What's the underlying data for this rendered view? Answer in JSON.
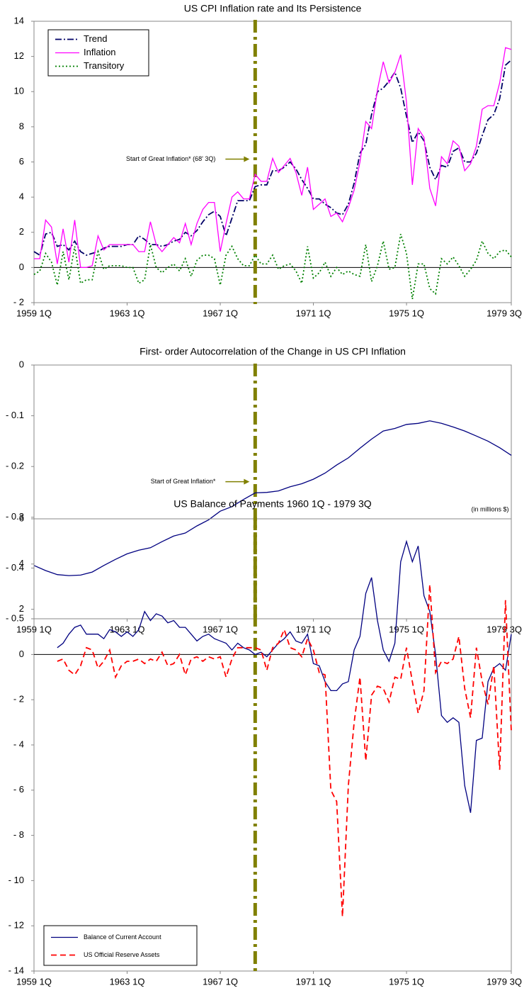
{
  "chart_data": [
    {
      "type": "line",
      "title": "US CPI Inflation rate and Its Persistence",
      "xlim": [
        0,
        82
      ],
      "ylim": [
        -2,
        14
      ],
      "xticks": [
        {
          "value": 0,
          "label": "1959 1Q"
        },
        {
          "value": 16,
          "label": "1963 1Q"
        },
        {
          "value": 32,
          "label": "1967 1Q"
        },
        {
          "value": 48,
          "label": "1971 1Q"
        },
        {
          "value": 64,
          "label": "1975 1Q"
        },
        {
          "value": 82,
          "label": "1979 3Q"
        }
      ],
      "yticks": [
        {
          "value": -2,
          "label": "- 2"
        },
        0,
        2,
        4,
        6,
        8,
        10,
        12,
        14
      ],
      "vline": 38,
      "annotation": "Start of Great Inflation* (68' 3Q)",
      "legend": "upper left",
      "grid": false,
      "x": [
        0,
        1,
        2,
        3,
        4,
        5,
        6,
        7,
        8,
        9,
        10,
        11,
        12,
        13,
        14,
        15,
        16,
        17,
        18,
        19,
        20,
        21,
        22,
        23,
        24,
        25,
        26,
        27,
        28,
        29,
        30,
        31,
        32,
        33,
        34,
        35,
        36,
        37,
        38,
        39,
        40,
        41,
        42,
        43,
        44,
        45,
        46,
        47,
        48,
        49,
        50,
        51,
        52,
        53,
        54,
        55,
        56,
        57,
        58,
        59,
        60,
        61,
        62,
        63,
        64,
        65,
        66,
        67,
        68,
        69,
        70,
        71,
        72,
        73,
        74,
        75,
        76,
        77,
        78,
        79,
        80,
        81,
        82
      ],
      "series": [
        {
          "name": "Trend",
          "color": "#000066",
          "style": "dashdot",
          "values": [
            0.9,
            0.7,
            1.9,
            2.0,
            1.2,
            1.3,
            1.0,
            1.5,
            0.9,
            0.7,
            0.8,
            0.9,
            1.1,
            1.2,
            1.2,
            1.2,
            1.3,
            1.3,
            1.8,
            1.6,
            1.3,
            1.3,
            1.2,
            1.3,
            1.5,
            1.6,
            2.0,
            1.8,
            2.1,
            2.6,
            3.0,
            3.2,
            2.9,
            1.8,
            2.8,
            3.8,
            3.8,
            3.8,
            4.6,
            4.7,
            4.7,
            5.5,
            5.5,
            5.7,
            6.0,
            5.6,
            5.0,
            4.5,
            3.9,
            3.9,
            3.6,
            3.4,
            3.1,
            3.0,
            3.6,
            4.8,
            6.5,
            7.0,
            8.7,
            10.0,
            10.2,
            10.6,
            11.1,
            10.2,
            8.6,
            7.1,
            7.7,
            7.2,
            5.7,
            5.0,
            5.8,
            5.7,
            6.6,
            6.8,
            6.0,
            6.0,
            6.5,
            7.5,
            8.4,
            8.7,
            9.6,
            11.5,
            11.8
          ]
        },
        {
          "name": "Inflation",
          "color": "#ff00ff",
          "style": "solid",
          "values": [
            0.5,
            0.5,
            2.7,
            2.3,
            0.2,
            2.2,
            0.3,
            2.7,
            0,
            0,
            0.1,
            1.8,
            1.0,
            1.3,
            1.3,
            1.3,
            1.3,
            1.3,
            0.9,
            0.9,
            2.6,
            1.3,
            0.9,
            1.3,
            1.7,
            1.4,
            2.5,
            1.3,
            2.5,
            3.3,
            3.7,
            3.7,
            0.9,
            2.5,
            4.0,
            4.3,
            3.9,
            3.9,
            5.3,
            4.9,
            4.9,
            6.2,
            5.4,
            5.8,
            6.2,
            5.4,
            4.1,
            5.7,
            3.3,
            3.6,
            3.9,
            2.9,
            3.1,
            2.6,
            3.4,
            4.4,
            6.0,
            8.3,
            7.9,
            10.1,
            11.7,
            10.5,
            11.1,
            12.1,
            9.4,
            4.7,
            7.9,
            7.4,
            4.5,
            3.5,
            6.3,
            5.9,
            7.2,
            6.9,
            5.5,
            5.9,
            6.9,
            9.0,
            9.2,
            9.2,
            10.5,
            12.5,
            12.4
          ]
        },
        {
          "name": "Transitory",
          "color": "#008000",
          "style": "dotted",
          "values": [
            -0.4,
            -0.2,
            0.8,
            0.3,
            -1.0,
            0.9,
            -0.7,
            1.2,
            -0.9,
            -0.7,
            -0.7,
            0.9,
            -0.1,
            0.1,
            0.1,
            0.1,
            0,
            0,
            -0.9,
            -0.7,
            1.3,
            0,
            -0.3,
            0,
            0.2,
            -0.2,
            0.5,
            -0.5,
            0.4,
            0.7,
            0.7,
            0.5,
            -1.0,
            0.7,
            1.2,
            0.5,
            0.1,
            0.1,
            0.7,
            0.2,
            0.2,
            0.7,
            -0.1,
            0.1,
            0.2,
            -0.2,
            -0.9,
            1.2,
            -0.6,
            -0.3,
            0.3,
            -0.5,
            0,
            -0.4,
            -0.2,
            -0.4,
            -0.5,
            1.3,
            -0.8,
            0.1,
            1.5,
            -0.1,
            0,
            1.9,
            0.8,
            -1.8,
            0.2,
            0.2,
            -1.2,
            -1.5,
            0.5,
            0.2,
            0.6,
            0.1,
            -0.5,
            -0.1,
            0.4,
            1.5,
            0.8,
            0.5,
            0.9,
            1.0,
            0.6
          ]
        }
      ]
    },
    {
      "type": "line",
      "title": "First- order Autocorrelation of the Change in US CPI Inflation",
      "xlim": [
        0,
        82
      ],
      "ylim": [
        -0.5,
        0
      ],
      "xticks": [
        {
          "value": 0,
          "label": "1959 1Q"
        },
        {
          "value": 16,
          "label": "1963 1Q"
        },
        {
          "value": 32,
          "label": "1967 1Q"
        },
        {
          "value": 48,
          "label": "1971 1Q"
        },
        {
          "value": 64,
          "label": "1975 1Q"
        },
        {
          "value": 82,
          "label": "1979 3Q"
        }
      ],
      "yticks": [
        {
          "value": -0.5,
          "label": "- 0.5"
        },
        {
          "value": -0.4,
          "label": "- 0.4"
        },
        {
          "value": -0.3,
          "label": "- 0.3"
        },
        {
          "value": -0.2,
          "label": "- 0.2"
        },
        {
          "value": -0.1,
          "label": "- 0.1"
        },
        0
      ],
      "vline": 38,
      "annotation": "Start of Great Inflation*",
      "grid": false,
      "x": [
        0,
        2,
        4,
        6,
        8,
        10,
        12,
        14,
        16,
        18,
        20,
        22,
        24,
        26,
        28,
        30,
        32,
        34,
        36,
        38,
        40,
        42,
        44,
        46,
        48,
        50,
        52,
        54,
        56,
        58,
        60,
        62,
        64,
        66,
        68,
        70,
        72,
        74,
        76,
        78,
        80,
        82
      ],
      "series": [
        {
          "color": "#000080",
          "style": "solid",
          "values": [
            -0.395,
            -0.405,
            -0.413,
            -0.415,
            -0.414,
            -0.408,
            -0.395,
            -0.383,
            -0.372,
            -0.365,
            -0.36,
            -0.348,
            -0.337,
            -0.331,
            -0.317,
            -0.305,
            -0.288,
            -0.279,
            -0.265,
            -0.252,
            -0.251,
            -0.248,
            -0.24,
            -0.234,
            -0.225,
            -0.213,
            -0.197,
            -0.183,
            -0.164,
            -0.146,
            -0.13,
            -0.125,
            -0.117,
            -0.115,
            -0.11,
            -0.115,
            -0.122,
            -0.13,
            -0.14,
            -0.15,
            -0.163,
            -0.178
          ]
        }
      ]
    },
    {
      "type": "line",
      "title": "US Balance of Payments 1960 1Q -  1979 3Q",
      "note": "(in millions $)",
      "xlim": [
        0,
        82
      ],
      "ylim": [
        -14,
        6
      ],
      "xticks": [
        {
          "value": 0,
          "label": "1959 1Q"
        },
        {
          "value": 16,
          "label": "1963 1Q"
        },
        {
          "value": 32,
          "label": "1967 1Q"
        },
        {
          "value": 48,
          "label": "1971 1Q"
        },
        {
          "value": 64,
          "label": "1975 1Q"
        },
        {
          "value": 82,
          "label": "1979 3Q"
        }
      ],
      "yticks": [
        {
          "value": -14,
          "label": "- 14"
        },
        {
          "value": -12,
          "label": "- 12"
        },
        {
          "value": -10,
          "label": "- 10"
        },
        {
          "value": -8,
          "label": "- 8"
        },
        {
          "value": -6,
          "label": "- 6"
        },
        {
          "value": -4,
          "label": "- 4"
        },
        {
          "value": -2,
          "label": "- 2"
        },
        0,
        2,
        4,
        6
      ],
      "vline": 38,
      "legend": "lower left",
      "grid": false,
      "x": [
        4,
        5,
        6,
        7,
        8,
        9,
        10,
        11,
        12,
        13,
        14,
        15,
        16,
        17,
        18,
        19,
        20,
        21,
        22,
        23,
        24,
        25,
        26,
        27,
        28,
        29,
        30,
        31,
        32,
        33,
        34,
        35,
        36,
        37,
        38,
        39,
        40,
        41,
        42,
        43,
        44,
        45,
        46,
        47,
        48,
        49,
        50,
        51,
        52,
        53,
        54,
        55,
        56,
        57,
        58,
        59,
        60,
        61,
        62,
        63,
        64,
        65,
        66,
        67,
        68,
        69,
        70,
        71,
        72,
        73,
        74,
        75,
        76,
        77,
        78,
        79,
        80,
        81,
        82
      ],
      "series": [
        {
          "name": "Balance of Current Account",
          "color": "#000080",
          "style": "solid",
          "values": [
            0.3,
            0.5,
            0.9,
            1.2,
            1.3,
            0.9,
            0.9,
            0.9,
            0.7,
            1.1,
            1.0,
            0.8,
            1.0,
            0.8,
            1.1,
            1.9,
            1.5,
            1.8,
            1.7,
            1.4,
            1.5,
            1.2,
            1.2,
            0.9,
            0.6,
            0.8,
            0.9,
            0.7,
            0.6,
            0.5,
            0.2,
            0.5,
            0.3,
            0.2,
            0,
            0.1,
            -0.1,
            0.2,
            0.5,
            0.7,
            1.0,
            0.6,
            0.5,
            0.9,
            -0.4,
            -0.5,
            -1.2,
            -1.6,
            -1.6,
            -1.3,
            -1.2,
            0.2,
            0.8,
            2.7,
            3.4,
            1.5,
            0.2,
            -0.3,
            0.5,
            4.1,
            5.0,
            4.1,
            4.8,
            2.6,
            1.9,
            0,
            -2.7,
            -3.0,
            -2.8,
            -3.0,
            -5.8,
            -7.0,
            -3.8,
            -3.7,
            -1.2,
            -0.6,
            -0.4,
            -0.7,
            0.9
          ]
        },
        {
          "name": "US Official Reserve Assets",
          "color": "#ff0000",
          "style": "dashed",
          "values": [
            -0.3,
            -0.2,
            -0.7,
            -0.9,
            -0.5,
            0.3,
            0.2,
            -0.6,
            -0.3,
            0.2,
            -1.0,
            -0.5,
            -0.3,
            -0.3,
            -0.2,
            -0.4,
            -0.2,
            -0.3,
            0.1,
            -0.5,
            -0.4,
            0,
            -0.9,
            -0.2,
            -0.1,
            -0.3,
            -0.1,
            -0.2,
            -0.1,
            -1.0,
            -0.2,
            0.3,
            0.3,
            0.3,
            0.3,
            0.2,
            -0.7,
            0.3,
            0.5,
            1.1,
            0.3,
            0.2,
            -0.1,
            0.7,
            0.2,
            -0.8,
            -0.9,
            -6.0,
            -6.5,
            -11.6,
            -5.8,
            -3.0,
            -1.0,
            -4.7,
            -1.8,
            -1.4,
            -1.5,
            -2.1,
            -1.0,
            -1.1,
            0.3,
            -1.2,
            -2.6,
            -1.6,
            3.1,
            -0.8,
            -0.3,
            -0.4,
            -0.2,
            0.8,
            -1.5,
            -2.8,
            0.3,
            -1.2,
            -2.2,
            -0.5,
            -5.1,
            2.4,
            -3.4
          ]
        }
      ]
    }
  ]
}
